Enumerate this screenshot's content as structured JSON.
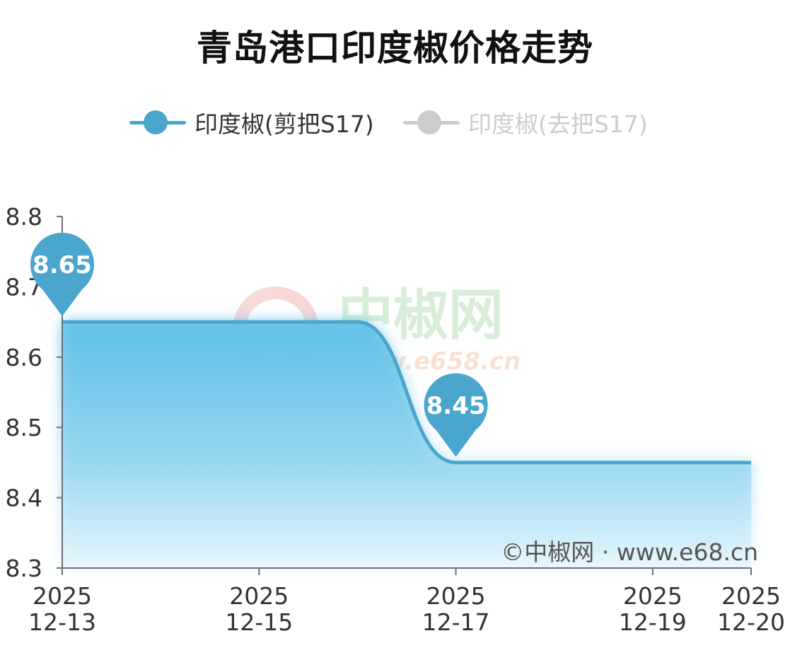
{
  "chart_data": {
    "type": "line",
    "title": "青岛港口印度椒价格走势",
    "x": [
      "2025-12-13",
      "2025-12-15",
      "2025-12-17",
      "2025-12-19",
      "2025-12-20"
    ],
    "x_tick_labels": [
      {
        "year": "2025",
        "date": "12-13"
      },
      {
        "year": "2025",
        "date": "12-15"
      },
      {
        "year": "2025",
        "date": "12-17"
      },
      {
        "year": "2025",
        "date": "12-19"
      },
      {
        "year": "2025",
        "date": "12-20"
      }
    ],
    "y_ticks": [
      "8.8",
      "8.7",
      "8.6",
      "8.5",
      "8.4",
      "8.3"
    ],
    "ylim": [
      8.3,
      8.8
    ],
    "xlim": [
      "2025-12-13",
      "2025-12-20"
    ],
    "series": [
      {
        "name": "印度椒(剪把S17)",
        "color": "#4aa6cd",
        "points": [
          {
            "x": "2025-12-13",
            "y": 8.65
          },
          {
            "x": "2025-12-14",
            "y": 8.65
          },
          {
            "x": "2025-12-15",
            "y": 8.65
          },
          {
            "x": "2025-12-16",
            "y": 8.65
          },
          {
            "x": "2025-12-17",
            "y": 8.45
          },
          {
            "x": "2025-12-18",
            "y": 8.45
          },
          {
            "x": "2025-12-19",
            "y": 8.45
          },
          {
            "x": "2025-12-20",
            "y": 8.45
          }
        ],
        "visible": true
      },
      {
        "name": "印度椒(去把S17)",
        "color": "#cccccc",
        "points": [],
        "visible": false
      }
    ],
    "markers": [
      {
        "label": "8.65",
        "x": "2025-12-13",
        "y": 8.65
      },
      {
        "label": "8.45",
        "x": "2025-12-17",
        "y": 8.45
      }
    ],
    "legend_position": "top-center",
    "grid": false
  },
  "watermark": {
    "text_cn": "中椒网",
    "text_url": "www.e658.cn"
  },
  "copyright": "©中椒网 · www.e68.cn"
}
